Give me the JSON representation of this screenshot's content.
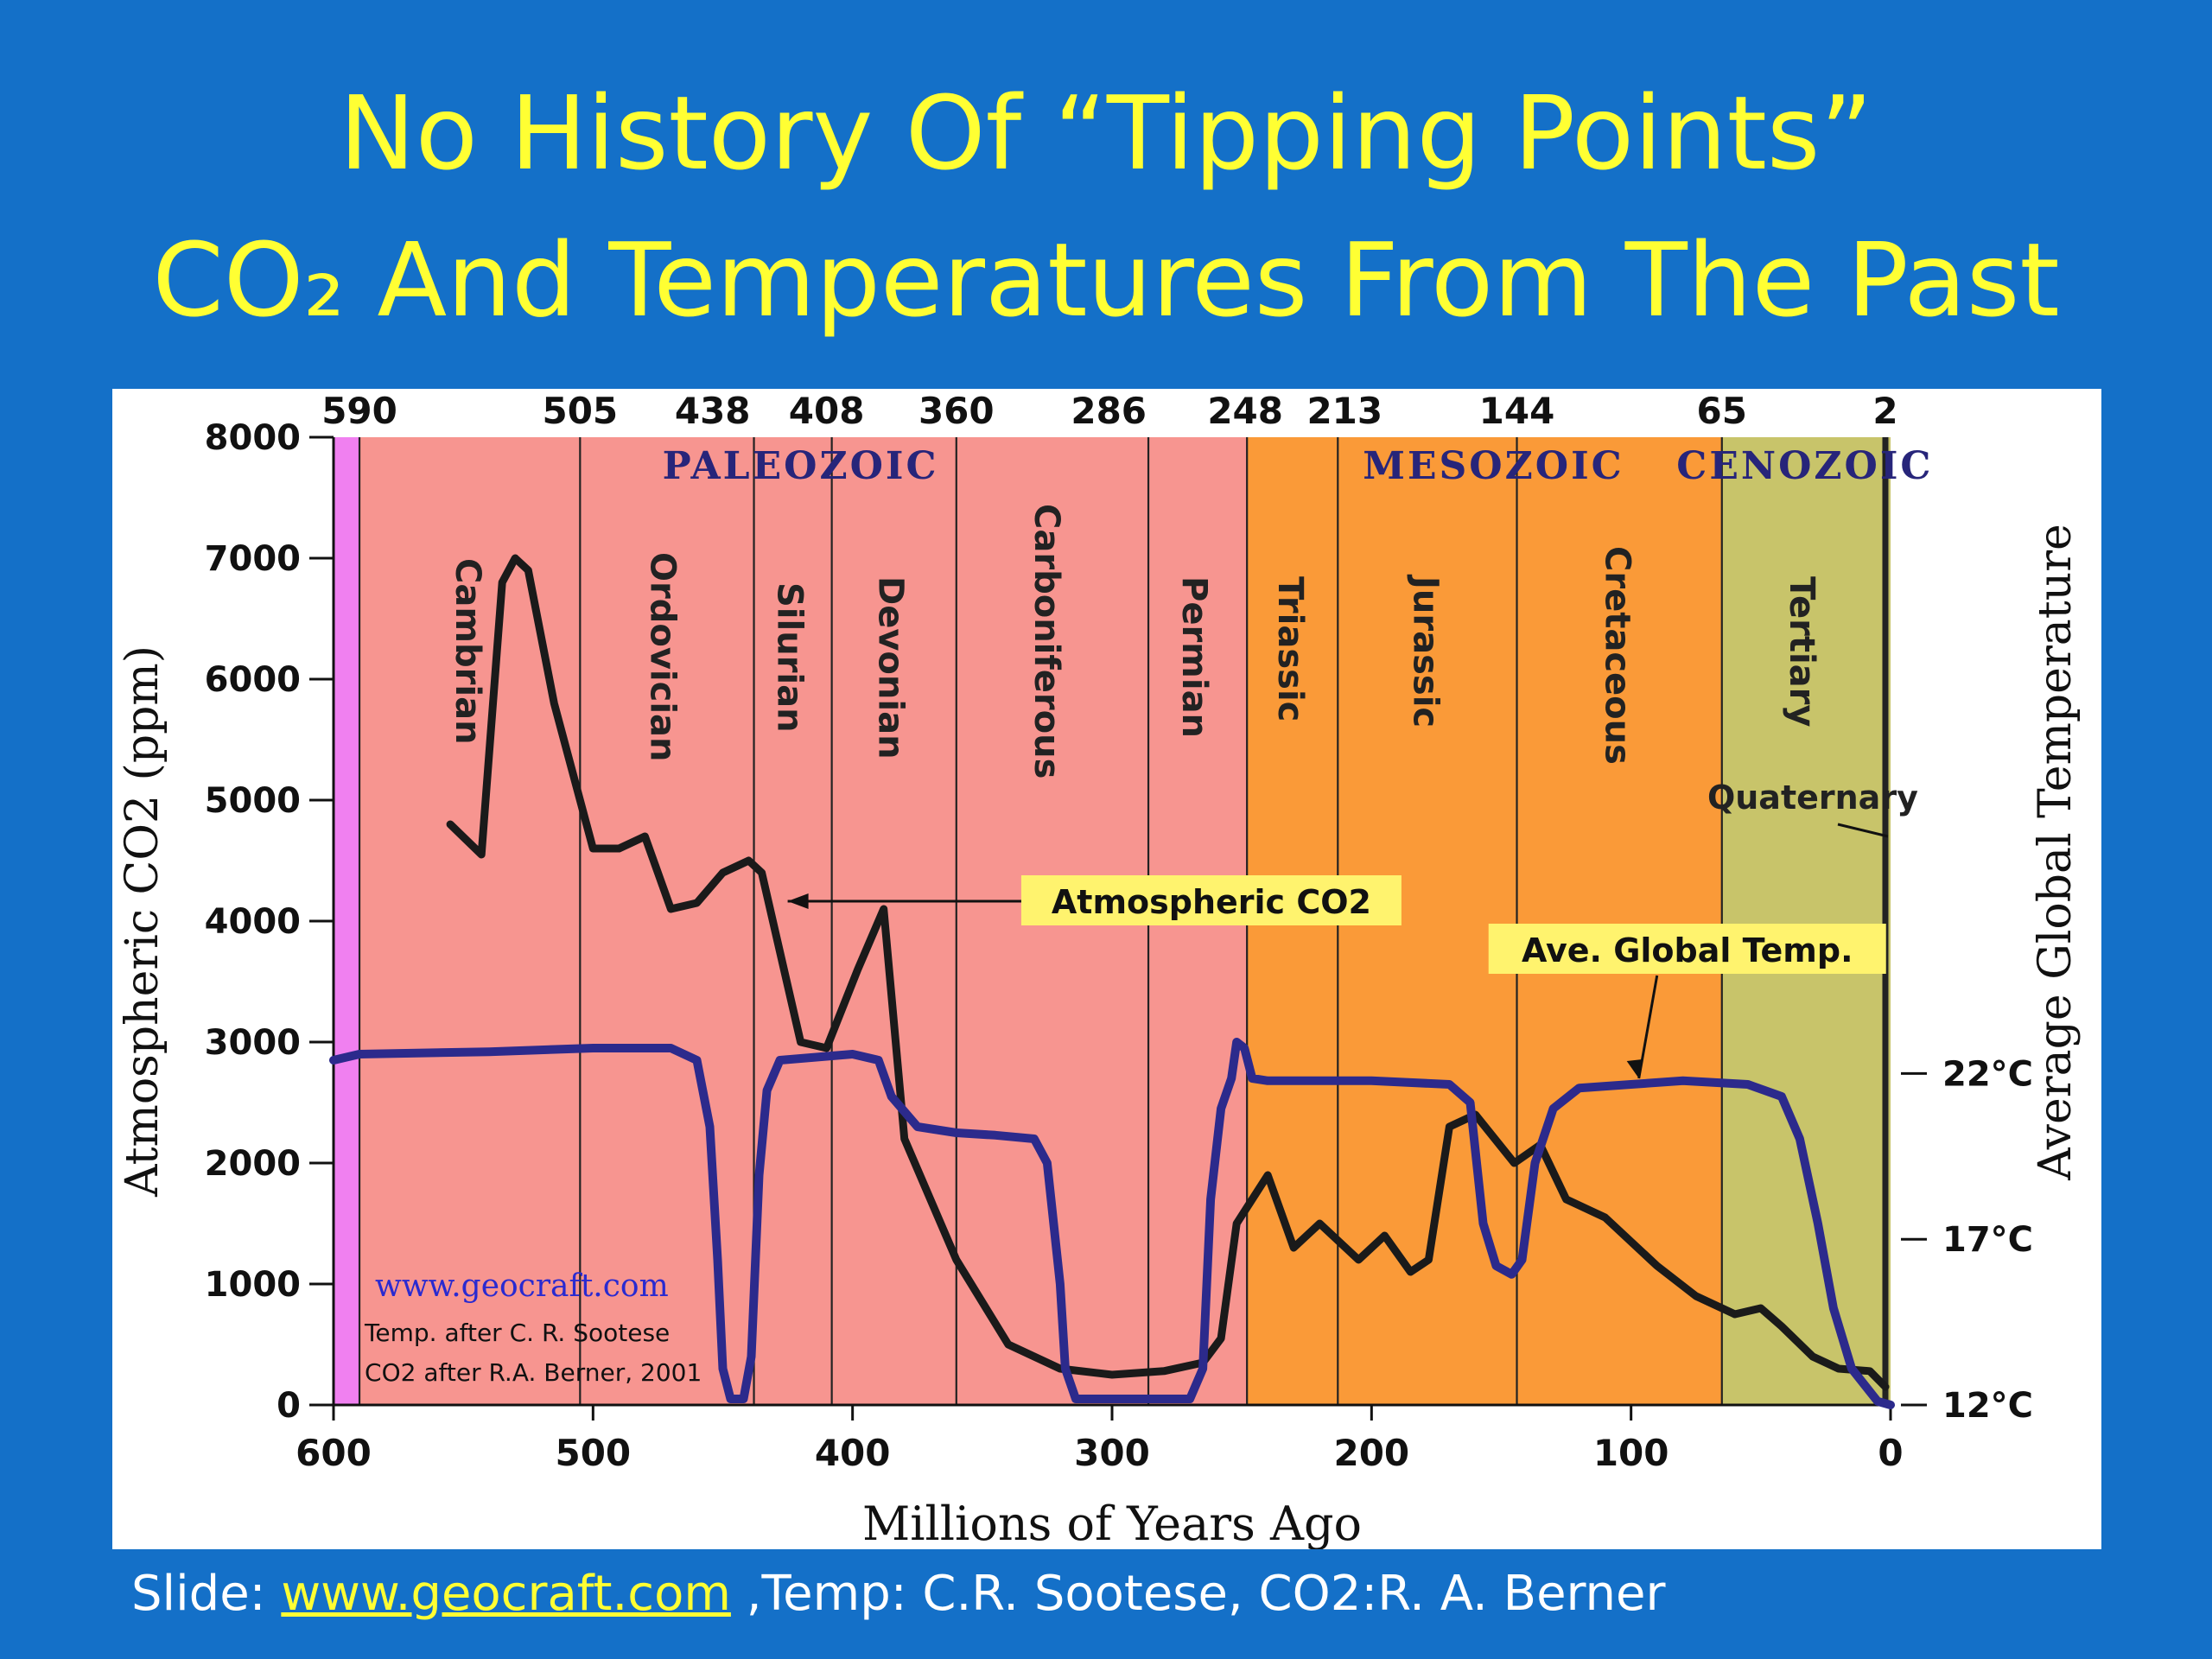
{
  "slide": {
    "title_line1": "No History Of “Tipping Points”",
    "title_line2": "CO₂ And Temperatures From The Past",
    "footer": {
      "prefix": "Slide: ",
      "link": "www.geocraft.com",
      "suffix": " ,Temp: C.R. Sootese, CO2:R. A. Berner"
    }
  },
  "chart_data": {
    "type": "line",
    "xlabel": "Millions of Years Ago",
    "ylabel": "Atmospheric CO2 (ppm)",
    "ylabel_right": "Average Global Temperature",
    "xlim": [
      600,
      0
    ],
    "ylim": [
      0,
      8000
    ],
    "x_ticks": [
      "600",
      "500",
      "400",
      "300",
      "200",
      "100",
      "0"
    ],
    "y_ticks": [
      "0",
      "1000",
      "2000",
      "3000",
      "4000",
      "5000",
      "6000",
      "7000",
      "8000"
    ],
    "right_ticks": [
      {
        "label": "12°C",
        "co2_equiv": 0
      },
      {
        "label": "17°C",
        "co2_equiv": 1370
      },
      {
        "label": "22°C",
        "co2_equiv": 2740
      }
    ],
    "boundaries": [
      {
        "ma": 590,
        "label": "590"
      },
      {
        "ma": 505,
        "label": "505"
      },
      {
        "ma": 438,
        "label": "438"
      },
      {
        "ma": 408,
        "label": "408"
      },
      {
        "ma": 360,
        "label": "360"
      },
      {
        "ma": 286,
        "label": "286"
      },
      {
        "ma": 248,
        "label": "248"
      },
      {
        "ma": 213,
        "label": "213"
      },
      {
        "ma": 144,
        "label": "144"
      },
      {
        "ma": 65,
        "label": "65"
      },
      {
        "ma": 2,
        "label": "2"
      }
    ],
    "era_colors": {
      "precambrian": "#f080f0",
      "paleozoic": "#f79590",
      "mesozoic": "#fa9a38",
      "cenozoic": "#c8c46a"
    },
    "eras": [
      {
        "name": "PALEOZOIC",
        "center_ma": 420
      },
      {
        "name": "MESOZOIC",
        "center_ma": 153
      },
      {
        "name": "CENOZOIC",
        "center_ma": 33
      }
    ],
    "periods": [
      {
        "name": "Cambrian",
        "center_ma": 548,
        "top_ppm": 7000
      },
      {
        "name": "Ordovician",
        "center_ma": 473,
        "top_ppm": 7050
      },
      {
        "name": "Silurian",
        "center_ma": 424,
        "top_ppm": 6800
      },
      {
        "name": "Devonian",
        "center_ma": 385,
        "top_ppm": 6850
      },
      {
        "name": "Carboniferous",
        "center_ma": 325,
        "top_ppm": 7450
      },
      {
        "name": "Permian",
        "center_ma": 268,
        "top_ppm": 6850
      },
      {
        "name": "Triassic",
        "center_ma": 231,
        "top_ppm": 6850
      },
      {
        "name": "Jurassic",
        "center_ma": 179,
        "top_ppm": 6850
      },
      {
        "name": "Cretaceous",
        "center_ma": 105,
        "top_ppm": 7100
      },
      {
        "name": "Tertiary",
        "center_ma": 34,
        "top_ppm": 6850
      }
    ],
    "series": [
      {
        "name": "Atmospheric CO2",
        "color": "#1a1a1a",
        "points": [
          [
            555,
            4800
          ],
          [
            543,
            4550
          ],
          [
            535,
            6800
          ],
          [
            530,
            7000
          ],
          [
            525,
            6900
          ],
          [
            515,
            5800
          ],
          [
            505,
            5000
          ],
          [
            500,
            4600
          ],
          [
            490,
            4600
          ],
          [
            480,
            4700
          ],
          [
            470,
            4100
          ],
          [
            460,
            4150
          ],
          [
            450,
            4400
          ],
          [
            440,
            4500
          ],
          [
            435,
            4400
          ],
          [
            420,
            3000
          ],
          [
            410,
            2950
          ],
          [
            398,
            3600
          ],
          [
            388,
            4100
          ],
          [
            380,
            2200
          ],
          [
            360,
            1200
          ],
          [
            340,
            500
          ],
          [
            320,
            300
          ],
          [
            300,
            250
          ],
          [
            280,
            280
          ],
          [
            265,
            350
          ],
          [
            258,
            550
          ],
          [
            252,
            1500
          ],
          [
            240,
            1900
          ],
          [
            230,
            1300
          ],
          [
            220,
            1500
          ],
          [
            205,
            1200
          ],
          [
            195,
            1400
          ],
          [
            185,
            1100
          ],
          [
            178,
            1200
          ],
          [
            170,
            2300
          ],
          [
            160,
            2400
          ],
          [
            145,
            2000
          ],
          [
            135,
            2150
          ],
          [
            125,
            1700
          ],
          [
            110,
            1550
          ],
          [
            90,
            1150
          ],
          [
            75,
            900
          ],
          [
            60,
            750
          ],
          [
            50,
            800
          ],
          [
            42,
            650
          ],
          [
            30,
            400
          ],
          [
            20,
            300
          ],
          [
            8,
            280
          ],
          [
            2,
            150
          ]
        ]
      },
      {
        "name": "Ave. Global Temp.",
        "color": "#2c2a8c",
        "points": [
          [
            600,
            2850
          ],
          [
            590,
            2900
          ],
          [
            540,
            2920
          ],
          [
            500,
            2950
          ],
          [
            470,
            2950
          ],
          [
            460,
            2850
          ],
          [
            455,
            2300
          ],
          [
            452,
            1200
          ],
          [
            450,
            300
          ],
          [
            447,
            50
          ],
          [
            442,
            50
          ],
          [
            439,
            400
          ],
          [
            436,
            1900
          ],
          [
            433,
            2600
          ],
          [
            428,
            2850
          ],
          [
            400,
            2900
          ],
          [
            390,
            2850
          ],
          [
            385,
            2550
          ],
          [
            375,
            2300
          ],
          [
            360,
            2250
          ],
          [
            345,
            2230
          ],
          [
            330,
            2200
          ],
          [
            325,
            2000
          ],
          [
            320,
            1000
          ],
          [
            318,
            300
          ],
          [
            314,
            50
          ],
          [
            270,
            50
          ],
          [
            265,
            300
          ],
          [
            262,
            1700
          ],
          [
            258,
            2450
          ],
          [
            254,
            2700
          ],
          [
            252,
            3000
          ],
          [
            249,
            2950
          ],
          [
            246,
            2700
          ],
          [
            240,
            2680
          ],
          [
            200,
            2680
          ],
          [
            170,
            2650
          ],
          [
            162,
            2500
          ],
          [
            157,
            1500
          ],
          [
            152,
            1150
          ],
          [
            146,
            1080
          ],
          [
            142,
            1200
          ],
          [
            137,
            2000
          ],
          [
            130,
            2450
          ],
          [
            120,
            2620
          ],
          [
            100,
            2650
          ],
          [
            80,
            2680
          ],
          [
            55,
            2650
          ],
          [
            42,
            2550
          ],
          [
            35,
            2200
          ],
          [
            28,
            1500
          ],
          [
            22,
            800
          ],
          [
            15,
            300
          ],
          [
            5,
            30
          ],
          [
            0,
            0
          ]
        ]
      }
    ],
    "annotations": {
      "co2_label": "Atmospheric CO2",
      "temp_label": "Ave. Global Temp.",
      "quaternary": "Quaternary",
      "credit_url": "www.geocraft.com",
      "credit_temp": "Temp. after C. R. Sootese",
      "credit_co2": "CO2 after R.A. Berner, 2001"
    }
  }
}
